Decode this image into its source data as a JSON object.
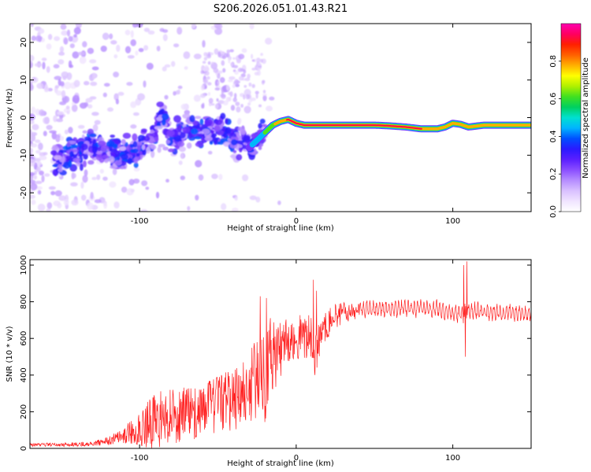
{
  "title": "S206.2026.051.01.43.R21",
  "chart_data": [
    {
      "type": "heatmap",
      "name": "spectrogram",
      "xlabel": "Height of straight line (km)",
      "ylabel": "Frequency (Hz)",
      "xlim": [
        -170,
        150
      ],
      "ylim": [
        -25,
        25
      ],
      "xticks": [
        -100,
        0,
        100
      ],
      "yticks": [
        -20,
        -10,
        0,
        10,
        20
      ],
      "colorbar": {
        "label": "Normalized spectral amplitude",
        "range": [
          0,
          1
        ],
        "ticks": [
          "0.0",
          "0.2",
          "0.4",
          "0.6",
          "0.8"
        ],
        "colormap": [
          "#ffffff",
          "#f0e4ff",
          "#d9c0ff",
          "#b58cff",
          "#8a4dff",
          "#5a1fff",
          "#2a1aff",
          "#0050ff",
          "#00b4ff",
          "#00e0d0",
          "#00d060",
          "#40e020",
          "#b0f000",
          "#ffff00",
          "#ffb000",
          "#ff6000",
          "#ff2000",
          "#ff0060",
          "#ff00b0"
        ]
      },
      "ridge": {
        "x": [
          -150,
          -140,
          -130,
          -120,
          -110,
          -100,
          -90,
          -85,
          -80,
          -70,
          -60,
          -50,
          -40,
          -30,
          -25,
          -20,
          -15,
          -10,
          -5,
          0,
          5,
          10,
          20,
          30,
          40,
          50,
          60,
          70,
          80,
          85,
          90,
          95,
          100,
          105,
          110,
          120,
          130,
          140,
          148
        ],
        "y": [
          -11,
          -9,
          -8,
          -9,
          -10,
          -8,
          -5,
          2,
          -6,
          -3,
          -4,
          -2,
          -6,
          -8,
          -6,
          -4,
          -2,
          -1,
          -0.5,
          -1.5,
          -2,
          -2,
          -2,
          -2,
          -2,
          -2,
          -2.2,
          -2.5,
          -3,
          -3,
          -3,
          -2.5,
          -1.5,
          -1.8,
          -2.5,
          -2,
          -2,
          -2,
          -2
        ],
        "amp": [
          0.35,
          0.4,
          0.38,
          0.4,
          0.42,
          0.4,
          0.38,
          0.45,
          0.4,
          0.38,
          0.4,
          0.42,
          0.45,
          0.42,
          0.5,
          0.62,
          0.75,
          0.88,
          0.95,
          0.98,
          0.97,
          0.95,
          0.96,
          0.97,
          0.98,
          0.97,
          0.96,
          0.95,
          0.93,
          0.9,
          0.92,
          0.88,
          0.9,
          0.92,
          0.9,
          0.93,
          0.92,
          0.9,
          0.9
        ]
      }
    },
    {
      "type": "line",
      "name": "snr",
      "xlabel": "Height of straight line (km)",
      "ylabel": "SNR (10 * v/v)",
      "xlim": [
        -170,
        150
      ],
      "ylim": [
        0,
        1030
      ],
      "xticks": [
        -100,
        0,
        100
      ],
      "yticks": [
        0,
        200,
        400,
        600,
        800,
        1000
      ],
      "color": "#ff2020",
      "envelope": {
        "x": [
          -170,
          -150,
          -130,
          -120,
          -110,
          -100,
          -90,
          -80,
          -70,
          -60,
          -50,
          -40,
          -30,
          -25,
          -22,
          -20,
          -15,
          -10,
          -5,
          0,
          5,
          10,
          12,
          15,
          20,
          25,
          30,
          40,
          50,
          60,
          70,
          80,
          90,
          100,
          105,
          107,
          108,
          110,
          120,
          130,
          140,
          150
        ],
        "y": [
          20,
          20,
          25,
          40,
          70,
          110,
          150,
          170,
          190,
          210,
          240,
          260,
          320,
          380,
          420,
          460,
          500,
          540,
          580,
          600,
          620,
          600,
          520,
          600,
          680,
          720,
          740,
          760,
          760,
          760,
          765,
          765,
          760,
          740,
          730,
          720,
          760,
          750,
          745,
          740,
          740,
          740
        ]
      },
      "spread": {
        "x": [
          -170,
          -130,
          -110,
          -100,
          -90,
          -80,
          -60,
          -40,
          -30,
          -25,
          -20,
          -15,
          -10,
          0,
          10,
          20,
          30,
          50,
          100,
          105,
          107,
          108,
          110,
          150
        ],
        "y": [
          10,
          12,
          40,
          100,
          160,
          150,
          150,
          170,
          200,
          260,
          320,
          200,
          150,
          120,
          140,
          80,
          60,
          40,
          40,
          60,
          200,
          150,
          60,
          40
        ]
      },
      "spikes": {
        "x": [
          -23,
          -21,
          -19,
          11,
          12,
          13,
          107,
          108,
          109
        ],
        "y": [
          830,
          350,
          820,
          920,
          400,
          860,
          1000,
          500,
          1020
        ]
      }
    }
  ]
}
